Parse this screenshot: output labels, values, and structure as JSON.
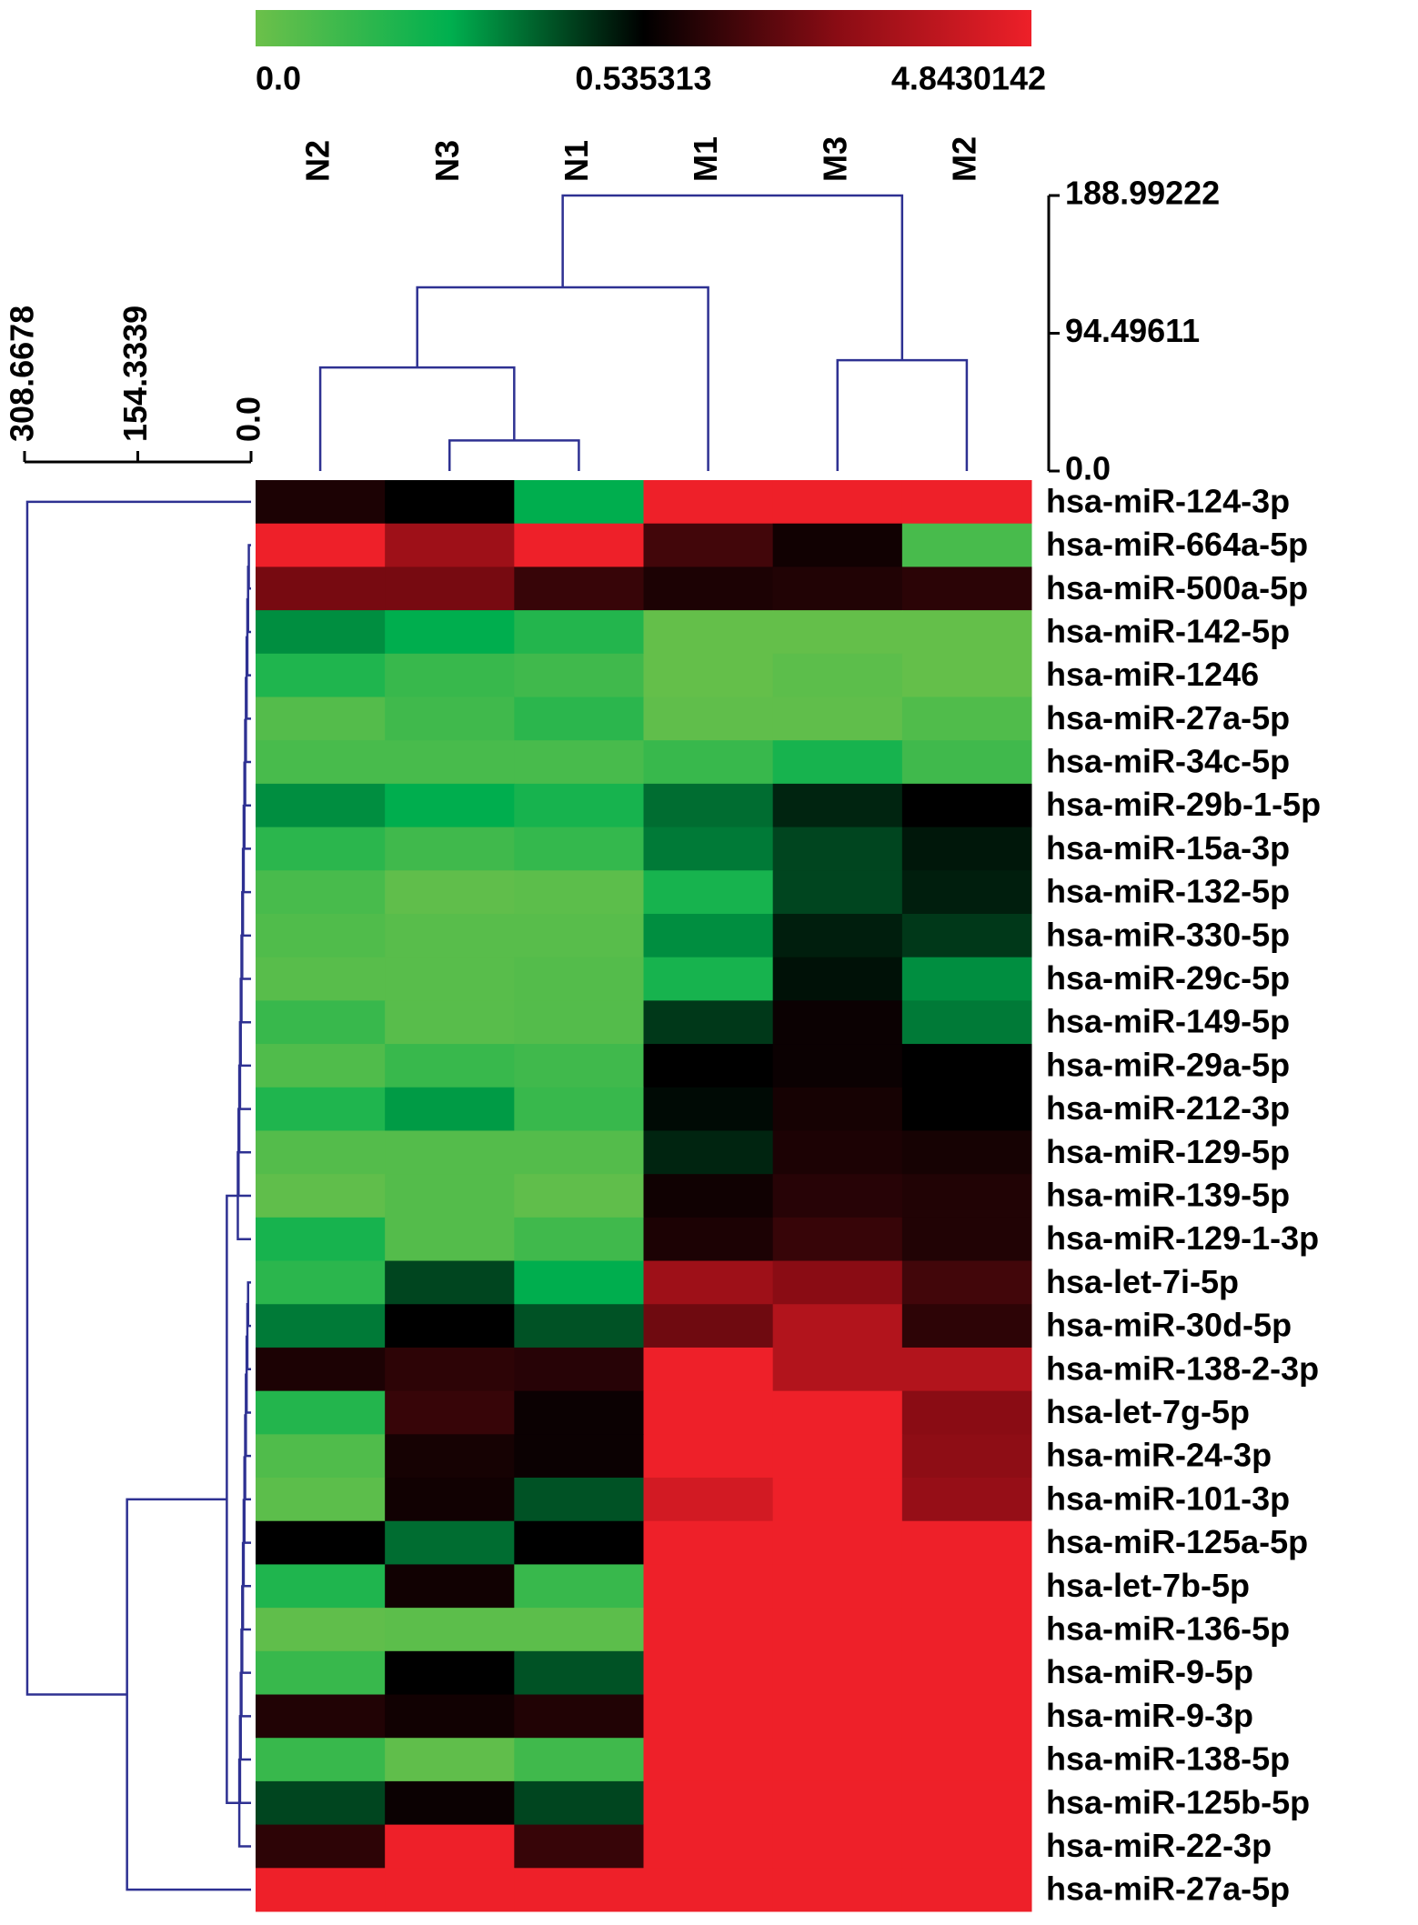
{
  "chart_data": {
    "type": "heatmap",
    "columns": [
      "N2",
      "N3",
      "N1",
      "M1",
      "M3",
      "M2"
    ],
    "rows": [
      "hsa-miR-124-3p",
      "hsa-miR-664a-5p",
      "hsa-miR-500a-5p",
      "hsa-miR-142-5p",
      "hsa-miR-1246",
      "hsa-miR-27a-5p",
      "hsa-miR-34c-5p",
      "hsa-miR-29b-1-5p",
      "hsa-miR-15a-3p",
      "hsa-miR-132-5p",
      "hsa-miR-330-5p",
      "hsa-miR-29c-5p",
      "hsa-miR-149-5p",
      "hsa-miR-29a-5p",
      "hsa-miR-212-3p",
      "hsa-miR-129-5p",
      "hsa-miR-139-5p",
      "hsa-miR-129-1-3p",
      "hsa-let-7i-5p",
      "hsa-miR-30d-5p",
      "hsa-miR-138-2-3p",
      "hsa-let-7g-5p",
      "hsa-miR-24-3p",
      "hsa-miR-101-3p",
      "hsa-miR-125a-5p",
      "hsa-let-7b-5p",
      "hsa-miR-136-5p",
      "hsa-miR-9-5p",
      "hsa-miR-9-3p",
      "hsa-miR-138-5p",
      "hsa-miR-125b-5p",
      "hsa-miR-22-3p",
      "hsa-miR-27a-5p"
    ],
    "values": [
      [
        0.97,
        0.54,
        0.27,
        4.84,
        4.84,
        4.84
      ],
      [
        4.84,
        3.12,
        4.84,
        1.57,
        0.8,
        0.09
      ],
      [
        2.4,
        2.4,
        1.4,
        0.97,
        1.05,
        1.2
      ],
      [
        0.32,
        0.27,
        0.18,
        0.02,
        0.02,
        0.02
      ],
      [
        0.19,
        0.13,
        0.11,
        0.02,
        0.04,
        0.02
      ],
      [
        0.06,
        0.11,
        0.16,
        0.03,
        0.03,
        0.07
      ],
      [
        0.09,
        0.09,
        0.09,
        0.13,
        0.21,
        0.11
      ],
      [
        0.32,
        0.27,
        0.21,
        0.37,
        0.48,
        0.54
      ],
      [
        0.16,
        0.11,
        0.14,
        0.35,
        0.43,
        0.5
      ],
      [
        0.09,
        0.03,
        0.04,
        0.21,
        0.43,
        0.49
      ],
      [
        0.07,
        0.05,
        0.05,
        0.32,
        0.49,
        0.45
      ],
      [
        0.05,
        0.05,
        0.06,
        0.21,
        0.51,
        0.32
      ],
      [
        0.13,
        0.05,
        0.06,
        0.45,
        0.71,
        0.35
      ],
      [
        0.07,
        0.13,
        0.11,
        0.54,
        0.71,
        0.54
      ],
      [
        0.19,
        0.3,
        0.13,
        0.52,
        0.88,
        0.54
      ],
      [
        0.06,
        0.06,
        0.06,
        0.48,
        0.97,
        0.88
      ],
      [
        0.03,
        0.06,
        0.03,
        0.79,
        1.14,
        1.05
      ],
      [
        0.21,
        0.06,
        0.11,
        0.97,
        1.4,
        1.05
      ],
      [
        0.16,
        0.43,
        0.27,
        3.12,
        2.69,
        1.57
      ],
      [
        0.35,
        0.54,
        0.41,
        2.26,
        3.55,
        1.23
      ],
      [
        0.97,
        1.23,
        1.14,
        4.84,
        3.55,
        3.55
      ],
      [
        0.18,
        1.4,
        0.71,
        4.84,
        4.84,
        2.69
      ],
      [
        0.07,
        0.88,
        0.71,
        4.84,
        4.84,
        2.78
      ],
      [
        0.04,
        0.8,
        0.41,
        4.24,
        4.84,
        2.95
      ],
      [
        0.54,
        0.37,
        0.54,
        4.84,
        4.84,
        4.84
      ],
      [
        0.19,
        0.8,
        0.13,
        4.84,
        4.84,
        4.84
      ],
      [
        0.03,
        0.04,
        0.04,
        4.84,
        4.84,
        4.84
      ],
      [
        0.13,
        0.54,
        0.41,
        4.84,
        4.84,
        4.84
      ],
      [
        1.05,
        0.8,
        1.05,
        4.84,
        4.84,
        4.84
      ],
      [
        0.13,
        0.03,
        0.11,
        4.84,
        4.84,
        4.84
      ],
      [
        0.43,
        0.71,
        0.43,
        4.84,
        4.84,
        4.84
      ],
      [
        1.23,
        4.84,
        1.4,
        4.84,
        4.84,
        4.84
      ],
      [
        4.84,
        4.84,
        4.84,
        4.84,
        4.84,
        4.84
      ]
    ],
    "colorbar_ticks": [
      {
        "value": 0,
        "label": "0.0"
      },
      0.535313,
      4.8430142
    ],
    "colors": [
      "#6cc04a",
      "#00b04f",
      "#000000",
      "#8a0c14",
      "#ee2029"
    ],
    "tree_color": "#2e3192",
    "col_tree_lim": [
      0,
      188.99222
    ],
    "col_tree_ticks": [
      {
        "value": 0,
        "label": "0.0"
      },
      94.49611,
      188.99222
    ],
    "col_tree": [
      {
        "left": 1,
        "right": 2,
        "height": 21
      },
      {
        "left": 0,
        "right": 6,
        "height": 71
      },
      {
        "left": 4,
        "right": 5,
        "height": 76
      },
      {
        "left": 7,
        "right": 3,
        "height": 126
      },
      {
        "left": 9,
        "right": 8,
        "height": 188.99
      }
    ],
    "row_tree_lim": [
      0,
      308.6678
    ],
    "row_tree_ticks": [
      {
        "value": 0,
        "label": "0.0"
      },
      154.3339,
      308.6678
    ],
    "row_tree": [
      {
        "left": 1,
        "right": 2,
        "height": 3
      },
      {
        "left": 33,
        "right": 3,
        "height": 4
      },
      {
        "left": 34,
        "right": 4,
        "height": 5
      },
      {
        "left": 35,
        "right": 5,
        "height": 6
      },
      {
        "left": 36,
        "right": 6,
        "height": 7
      },
      {
        "left": 37,
        "right": 7,
        "height": 8
      },
      {
        "left": 38,
        "right": 8,
        "height": 9
      },
      {
        "left": 39,
        "right": 9,
        "height": 10
      },
      {
        "left": 40,
        "right": 10,
        "height": 11
      },
      {
        "left": 41,
        "right": 11,
        "height": 12
      },
      {
        "left": 42,
        "right": 12,
        "height": 13
      },
      {
        "left": 43,
        "right": 13,
        "height": 14
      },
      {
        "left": 44,
        "right": 14,
        "height": 15
      },
      {
        "left": 45,
        "right": 15,
        "height": 16
      },
      {
        "left": 46,
        "right": 16,
        "height": 17
      },
      {
        "left": 47,
        "right": 17,
        "height": 18
      },
      {
        "left": 18,
        "right": 19,
        "height": 4
      },
      {
        "left": 49,
        "right": 20,
        "height": 5
      },
      {
        "left": 50,
        "right": 21,
        "height": 6
      },
      {
        "left": 51,
        "right": 22,
        "height": 7
      },
      {
        "left": 52,
        "right": 23,
        "height": 8
      },
      {
        "left": 53,
        "right": 24,
        "height": 9
      },
      {
        "left": 54,
        "right": 25,
        "height": 10
      },
      {
        "left": 55,
        "right": 26,
        "height": 11
      },
      {
        "left": 56,
        "right": 27,
        "height": 12
      },
      {
        "left": 57,
        "right": 28,
        "height": 13
      },
      {
        "left": 58,
        "right": 29,
        "height": 14
      },
      {
        "left": 59,
        "right": 30,
        "height": 15
      },
      {
        "left": 60,
        "right": 31,
        "height": 16
      },
      {
        "left": 48,
        "right": 61,
        "height": 33
      },
      {
        "left": 62,
        "right": 32,
        "height": 169
      },
      {
        "left": 0,
        "right": 63,
        "height": 305
      }
    ]
  }
}
